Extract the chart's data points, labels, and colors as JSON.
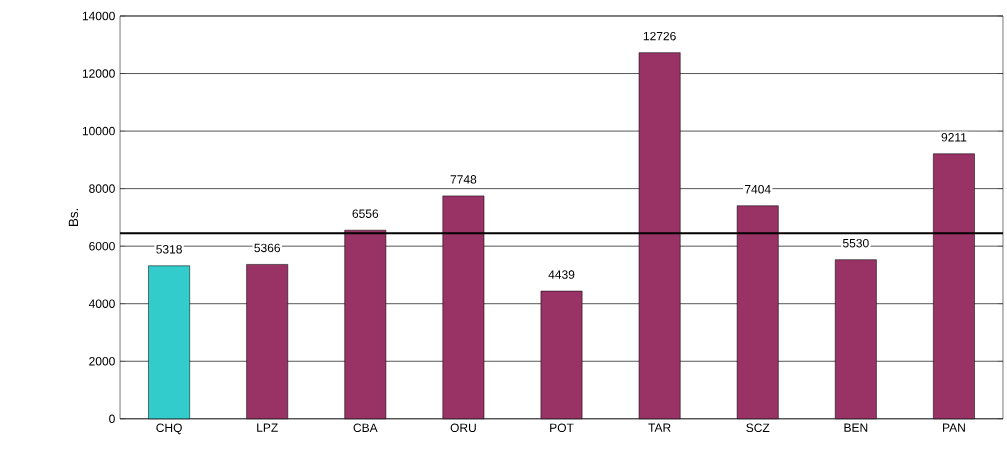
{
  "chart_data": {
    "type": "bar",
    "ylabel": "Bs.",
    "categories": [
      "CHQ",
      "LPZ",
      "CBA",
      "ORU",
      "POT",
      "TAR",
      "SCZ",
      "BEN",
      "PAN"
    ],
    "values": [
      5318,
      5366,
      6556,
      7748,
      4439,
      12726,
      7404,
      5530,
      9211
    ],
    "colors": [
      "#33CCCC",
      "#993366",
      "#993366",
      "#993366",
      "#993366",
      "#993366",
      "#993366",
      "#993366",
      "#993366"
    ],
    "ylim": [
      0,
      14000
    ],
    "yticks": [
      0,
      2000,
      4000,
      6000,
      8000,
      10000,
      12000,
      14000
    ],
    "grid": "y",
    "data_labels": true,
    "ref_lines": [
      {
        "axis": "y",
        "value": 6450,
        "color": "#000000"
      }
    ]
  }
}
